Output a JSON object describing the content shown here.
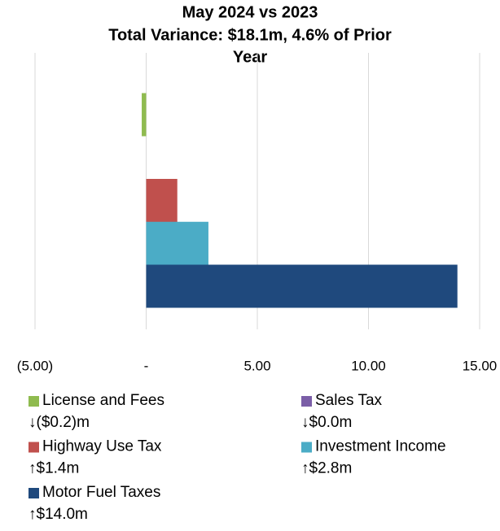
{
  "chart_data": {
    "type": "hbar",
    "title": [
      "May 2024 vs 2023",
      "Total Variance: $18.1m, 4.6% of Prior",
      "Year"
    ],
    "series": [
      {
        "name": "License and Fees",
        "color": "#8fbb4f",
        "values": [
          -0.2
        ],
        "value_labels": [
          "↓($0.2)m"
        ]
      },
      {
        "name": "Sales Tax",
        "color": "#7b5ea7",
        "values": [
          0.0
        ],
        "value_labels": [
          "↓$0.0m"
        ]
      },
      {
        "name": "Highway Use Tax",
        "color": "#c0504d",
        "values": [
          1.4
        ],
        "value_labels": [
          "↑$1.4m"
        ]
      },
      {
        "name": "Investment Income",
        "color": "#4bacc6",
        "values": [
          2.8
        ],
        "value_labels": [
          "↑$2.8m"
        ]
      },
      {
        "name": "Motor Fuel Taxes",
        "color": "#1f497d",
        "values": [
          14.0
        ],
        "value_labels": [
          "↑$14.0m"
        ]
      }
    ],
    "xlim": [
      -5,
      15
    ],
    "xticks": [
      {
        "value": -5,
        "label": "(5.00)"
      },
      {
        "value": 0,
        "label": "-"
      },
      {
        "value": 5,
        "label": "5.00"
      },
      {
        "value": 10,
        "label": "10.00"
      },
      {
        "value": 15,
        "label": "15.00"
      }
    ],
    "grid": true
  }
}
